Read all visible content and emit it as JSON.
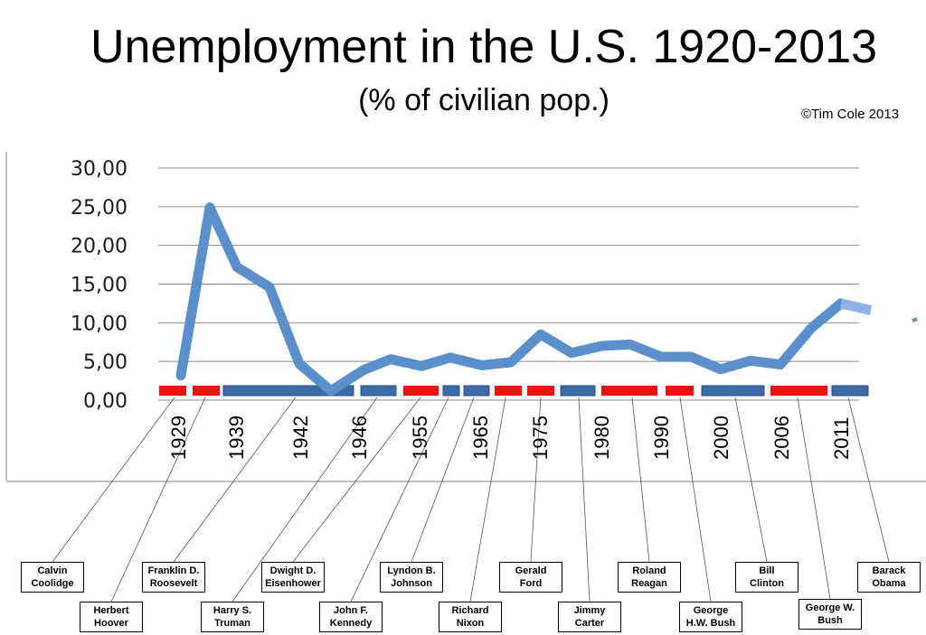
{
  "chart_data": {
    "type": "line",
    "title": "Unemployment in the U.S. 1920-2013",
    "subtitle": "(% of civilian pop.)",
    "credit": "©Tim Cole 2013",
    "ylim": [
      0,
      30
    ],
    "yticks": [
      "0,00",
      "5,00",
      "10,00",
      "15,00",
      "20,00",
      "25,00",
      "30,00"
    ],
    "grid": true,
    "line_color": "#5b8fcc",
    "party_colors": {
      "republican": "#ee1111",
      "democrat": "#3d6aa8"
    },
    "x_tick_labels": [
      "1929",
      "1939",
      "1942",
      "1946",
      "1955",
      "1965",
      "1975",
      "1980",
      "1990",
      "2000",
      "2006",
      "2011"
    ],
    "series": [
      {
        "values": [
          3.2,
          24.9,
          17.2,
          14.6,
          4.7,
          1.2,
          3.9,
          5.3,
          4.4,
          5.5,
          4.5,
          4.9,
          8.5,
          6.1,
          7.0,
          7.2,
          5.6,
          5.6,
          4.0,
          5.1,
          4.6,
          9.3,
          12.5,
          11.6,
          10.5
        ]
      }
    ],
    "presidents": [
      {
        "name": "Calvin Coolidge",
        "party": "republican"
      },
      {
        "name": "Herbert Hoover",
        "party": "republican"
      },
      {
        "name": "Franklin D. Roosevelt",
        "party": "democrat"
      },
      {
        "name": "Harry S. Truman",
        "party": "democrat"
      },
      {
        "name": "Dwight D. Eisenhower",
        "party": "republican"
      },
      {
        "name": "John F. Kennedy",
        "party": "democrat"
      },
      {
        "name": "Lyndon B. Johnson",
        "party": "democrat"
      },
      {
        "name": "Richard Nixon",
        "party": "republican"
      },
      {
        "name": "Gerald Ford",
        "party": "republican"
      },
      {
        "name": "Jimmy Carter",
        "party": "democrat"
      },
      {
        "name": "Roland Reagan",
        "party": "republican"
      },
      {
        "name": "George H.W. Bush",
        "party": "republican"
      },
      {
        "name": "Bill Clinton",
        "party": "democrat"
      },
      {
        "name": "George W. Bush",
        "party": "republican"
      },
      {
        "name": "Barack Obama",
        "party": "democrat"
      }
    ],
    "president_box_lines": [
      [
        "Calvin",
        "Coolidge"
      ],
      [
        "Herbert",
        "Hoover"
      ],
      [
        "Franklin D.",
        "Roosevelt"
      ],
      [
        "Harry S.",
        "Truman"
      ],
      [
        "Dwight D.",
        "Eisenhower"
      ],
      [
        "John F.",
        "Kennedy"
      ],
      [
        "Lyndon B.",
        "Johnson"
      ],
      [
        "Richard",
        "Nixon"
      ],
      [
        "Gerald",
        "Ford"
      ],
      [
        "Jimmy",
        "Carter"
      ],
      [
        "Roland",
        "Reagan"
      ],
      [
        "George",
        "H.W. Bush"
      ],
      [
        "Bill",
        "Clinton"
      ],
      [
        "George W.",
        "Bush"
      ],
      [
        "Barack",
        "Obama"
      ]
    ]
  }
}
